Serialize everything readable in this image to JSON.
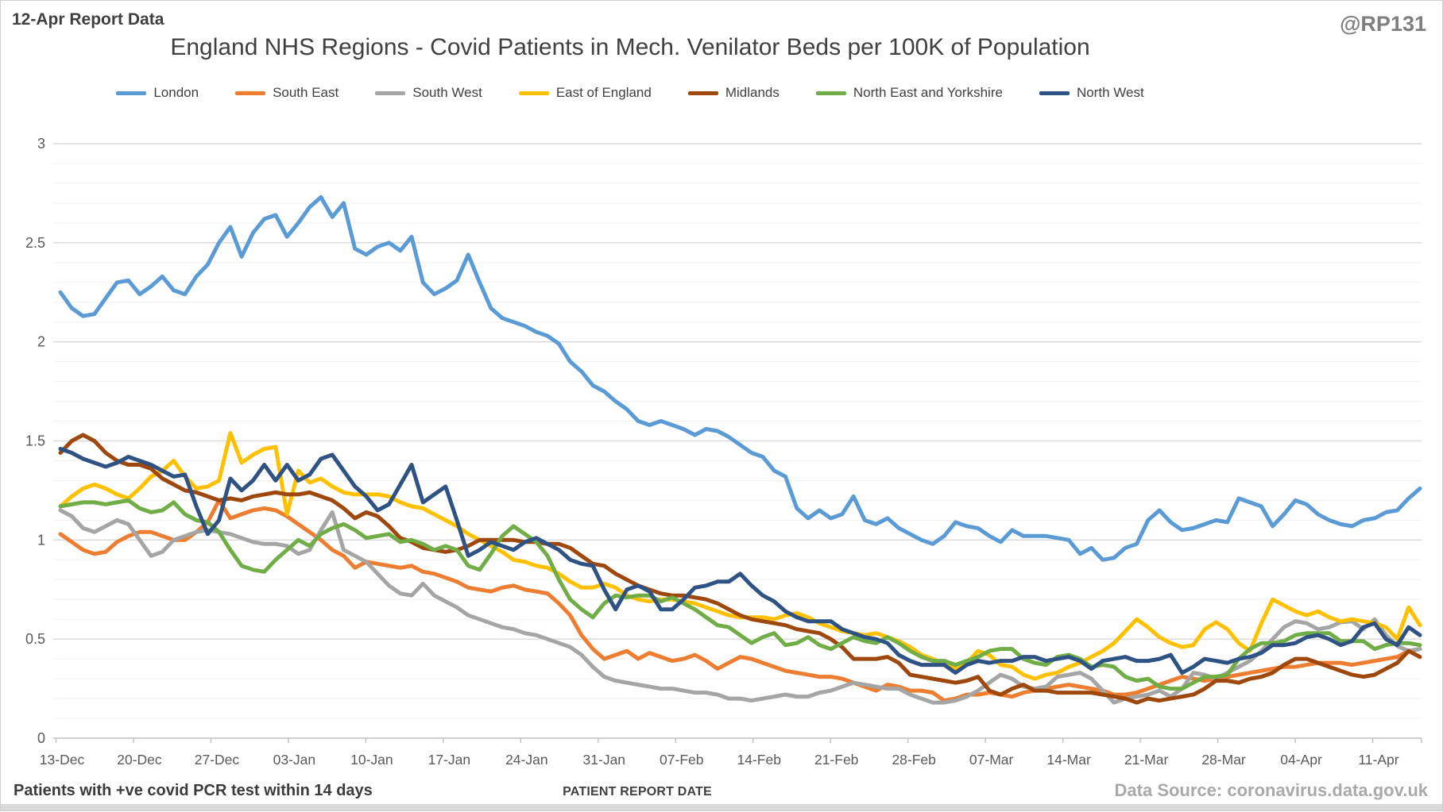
{
  "header": {
    "report_label": "12-Apr Report Data",
    "watermark": "@RP131",
    "title": "England NHS Regions - Covid Patients in Mech. Venilator Beds per 100K of Population"
  },
  "footer": {
    "left_note": "Patients with +ve covid PCR test within 14 days",
    "xlabel": "PATIENT REPORT DATE",
    "source": "Data Source: coronavirus.data.gov.uk"
  },
  "chart_data": {
    "type": "line",
    "title": "England NHS Regions - Covid Patients in Mech. Venilator Beds per 100K of Population",
    "xlabel": "PATIENT REPORT DATE",
    "ylabel": "",
    "ylim": [
      0,
      3
    ],
    "y_ticks": [
      0,
      0.5,
      1,
      1.5,
      2,
      2.5,
      3
    ],
    "y_minor_step": 0.1,
    "grid": "horizontal",
    "legend_position": "top",
    "x_tick_labels": [
      "13-Dec",
      "20-Dec",
      "27-Dec",
      "03-Jan",
      "10-Jan",
      "17-Jan",
      "24-Jan",
      "31-Jan",
      "07-Feb",
      "14-Feb",
      "21-Feb",
      "28-Feb",
      "07-Mar",
      "14-Mar",
      "21-Mar",
      "28-Mar",
      "04-Apr",
      "11-Apr"
    ],
    "x_start": "13-Dec",
    "x_end": "12-Apr",
    "points_per_series": 121,
    "axis_color": "#bfbfbf",
    "major_grid_color": "#d9d9d9",
    "minor_grid_color": "#f0f0f0",
    "series": [
      {
        "name": "London",
        "color": "#5B9BD5",
        "values": [
          2.25,
          2.17,
          2.13,
          2.14,
          2.22,
          2.3,
          2.31,
          2.24,
          2.28,
          2.33,
          2.26,
          2.24,
          2.33,
          2.39,
          2.5,
          2.58,
          2.43,
          2.55,
          2.62,
          2.64,
          2.53,
          2.6,
          2.68,
          2.73,
          2.63,
          2.7,
          2.47,
          2.44,
          2.48,
          2.5,
          2.46,
          2.53,
          2.3,
          2.24,
          2.27,
          2.31,
          2.44,
          2.3,
          2.17,
          2.12,
          2.1,
          2.08,
          2.05,
          2.03,
          1.99,
          1.9,
          1.85,
          1.78,
          1.75,
          1.7,
          1.66,
          1.6,
          1.58,
          1.6,
          1.58,
          1.56,
          1.53,
          1.56,
          1.55,
          1.52,
          1.48,
          1.44,
          1.42,
          1.35,
          1.32,
          1.16,
          1.11,
          1.15,
          1.11,
          1.13,
          1.22,
          1.1,
          1.08,
          1.11,
          1.06,
          1.03,
          1.0,
          0.98,
          1.02,
          1.09,
          1.07,
          1.06,
          1.02,
          0.99,
          1.05,
          1.02,
          1.02,
          1.02,
          1.01,
          1.0,
          0.93,
          0.96,
          0.9,
          0.91,
          0.96,
          0.98,
          1.1,
          1.15,
          1.09,
          1.05,
          1.06,
          1.08,
          1.1,
          1.09,
          1.21,
          1.19,
          1.17,
          1.07,
          1.13,
          1.2,
          1.18,
          1.13,
          1.1,
          1.08,
          1.07,
          1.1,
          1.11,
          1.14,
          1.15,
          1.21,
          1.26
        ]
      },
      {
        "name": "South East",
        "color": "#ED7D31",
        "values": [
          1.03,
          0.99,
          0.95,
          0.93,
          0.94,
          0.99,
          1.02,
          1.04,
          1.04,
          1.02,
          1.0,
          1.0,
          1.04,
          1.09,
          1.2,
          1.11,
          1.13,
          1.15,
          1.16,
          1.15,
          1.12,
          1.08,
          1.04,
          1.0,
          0.95,
          0.92,
          0.86,
          0.89,
          0.88,
          0.87,
          0.86,
          0.87,
          0.84,
          0.83,
          0.81,
          0.79,
          0.76,
          0.75,
          0.74,
          0.76,
          0.77,
          0.75,
          0.74,
          0.73,
          0.68,
          0.62,
          0.52,
          0.45,
          0.4,
          0.42,
          0.44,
          0.4,
          0.43,
          0.41,
          0.39,
          0.4,
          0.42,
          0.39,
          0.35,
          0.38,
          0.41,
          0.4,
          0.38,
          0.36,
          0.34,
          0.33,
          0.32,
          0.31,
          0.31,
          0.3,
          0.28,
          0.26,
          0.24,
          0.27,
          0.26,
          0.24,
          0.24,
          0.23,
          0.19,
          0.2,
          0.22,
          0.22,
          0.23,
          0.22,
          0.21,
          0.23,
          0.24,
          0.25,
          0.26,
          0.27,
          0.26,
          0.25,
          0.24,
          0.22,
          0.22,
          0.23,
          0.25,
          0.27,
          0.29,
          0.31,
          0.3,
          0.29,
          0.3,
          0.31,
          0.32,
          0.33,
          0.34,
          0.35,
          0.36,
          0.36,
          0.37,
          0.38,
          0.38,
          0.38,
          0.37,
          0.38,
          0.39,
          0.4,
          0.41,
          0.44,
          0.45
        ]
      },
      {
        "name": "South West",
        "color": "#A5A5A5",
        "values": [
          1.15,
          1.12,
          1.06,
          1.04,
          1.07,
          1.1,
          1.08,
          1.0,
          0.92,
          0.94,
          1.0,
          1.02,
          1.04,
          1.05,
          1.04,
          1.03,
          1.01,
          0.99,
          0.98,
          0.98,
          0.97,
          0.93,
          0.95,
          1.05,
          1.14,
          0.95,
          0.92,
          0.89,
          0.83,
          0.77,
          0.73,
          0.72,
          0.78,
          0.72,
          0.69,
          0.66,
          0.62,
          0.6,
          0.58,
          0.56,
          0.55,
          0.53,
          0.52,
          0.5,
          0.48,
          0.46,
          0.42,
          0.36,
          0.31,
          0.29,
          0.28,
          0.27,
          0.26,
          0.25,
          0.25,
          0.24,
          0.23,
          0.23,
          0.22,
          0.2,
          0.2,
          0.19,
          0.2,
          0.21,
          0.22,
          0.21,
          0.21,
          0.23,
          0.24,
          0.26,
          0.28,
          0.27,
          0.26,
          0.25,
          0.25,
          0.22,
          0.2,
          0.18,
          0.18,
          0.19,
          0.21,
          0.24,
          0.28,
          0.32,
          0.3,
          0.26,
          0.25,
          0.26,
          0.31,
          0.32,
          0.33,
          0.3,
          0.24,
          0.18,
          0.2,
          0.21,
          0.22,
          0.24,
          0.21,
          0.25,
          0.33,
          0.32,
          0.3,
          0.33,
          0.36,
          0.39,
          0.44,
          0.5,
          0.56,
          0.59,
          0.58,
          0.55,
          0.56,
          0.585,
          0.59,
          0.55,
          0.6,
          0.52,
          0.465,
          0.44,
          0.45
        ]
      },
      {
        "name": "East of England",
        "color": "#FFC000",
        "values": [
          1.17,
          1.22,
          1.26,
          1.28,
          1.26,
          1.23,
          1.21,
          1.26,
          1.32,
          1.35,
          1.4,
          1.32,
          1.26,
          1.27,
          1.3,
          1.54,
          1.39,
          1.43,
          1.46,
          1.47,
          1.13,
          1.35,
          1.29,
          1.31,
          1.27,
          1.24,
          1.23,
          1.23,
          1.23,
          1.22,
          1.19,
          1.17,
          1.16,
          1.13,
          1.1,
          1.07,
          1.03,
          1.0,
          0.97,
          0.94,
          0.9,
          0.89,
          0.87,
          0.86,
          0.83,
          0.79,
          0.76,
          0.76,
          0.78,
          0.76,
          0.72,
          0.7,
          0.69,
          0.7,
          0.7,
          0.69,
          0.68,
          0.66,
          0.64,
          0.62,
          0.61,
          0.61,
          0.61,
          0.6,
          0.62,
          0.63,
          0.61,
          0.58,
          0.56,
          0.54,
          0.53,
          0.52,
          0.53,
          0.51,
          0.49,
          0.46,
          0.42,
          0.4,
          0.37,
          0.35,
          0.38,
          0.44,
          0.42,
          0.37,
          0.36,
          0.32,
          0.3,
          0.32,
          0.33,
          0.36,
          0.38,
          0.41,
          0.44,
          0.48,
          0.54,
          0.6,
          0.56,
          0.51,
          0.48,
          0.46,
          0.47,
          0.55,
          0.585,
          0.55,
          0.48,
          0.44,
          0.58,
          0.7,
          0.67,
          0.64,
          0.62,
          0.64,
          0.61,
          0.59,
          0.6,
          0.59,
          0.58,
          0.56,
          0.5,
          0.66,
          0.57
        ]
      },
      {
        "name": "Midlands",
        "color": "#9E480E",
        "values": [
          1.44,
          1.5,
          1.53,
          1.5,
          1.44,
          1.4,
          1.38,
          1.38,
          1.36,
          1.31,
          1.28,
          1.25,
          1.24,
          1.22,
          1.2,
          1.21,
          1.2,
          1.22,
          1.23,
          1.24,
          1.23,
          1.23,
          1.24,
          1.22,
          1.2,
          1.16,
          1.11,
          1.14,
          1.12,
          1.07,
          1.01,
          0.99,
          0.96,
          0.95,
          0.94,
          0.95,
          0.97,
          1.0,
          1.0,
          1.0,
          1.0,
          0.99,
          0.99,
          0.98,
          0.98,
          0.96,
          0.92,
          0.88,
          0.87,
          0.83,
          0.8,
          0.77,
          0.75,
          0.73,
          0.72,
          0.72,
          0.71,
          0.7,
          0.68,
          0.65,
          0.62,
          0.6,
          0.59,
          0.58,
          0.57,
          0.55,
          0.54,
          0.53,
          0.5,
          0.46,
          0.4,
          0.4,
          0.4,
          0.41,
          0.38,
          0.32,
          0.31,
          0.3,
          0.29,
          0.28,
          0.29,
          0.31,
          0.24,
          0.22,
          0.25,
          0.27,
          0.24,
          0.24,
          0.23,
          0.23,
          0.23,
          0.23,
          0.22,
          0.21,
          0.2,
          0.18,
          0.2,
          0.19,
          0.2,
          0.21,
          0.22,
          0.25,
          0.29,
          0.29,
          0.28,
          0.3,
          0.31,
          0.33,
          0.37,
          0.4,
          0.4,
          0.38,
          0.36,
          0.34,
          0.32,
          0.31,
          0.32,
          0.35,
          0.38,
          0.44,
          0.41
        ]
      },
      {
        "name": "North East and Yorkshire",
        "color": "#70AD47",
        "values": [
          1.17,
          1.18,
          1.19,
          1.19,
          1.18,
          1.19,
          1.2,
          1.16,
          1.14,
          1.15,
          1.19,
          1.13,
          1.1,
          1.09,
          1.04,
          0.95,
          0.87,
          0.85,
          0.84,
          0.9,
          0.95,
          1.0,
          0.97,
          1.03,
          1.06,
          1.08,
          1.05,
          1.01,
          1.02,
          1.03,
          0.99,
          1.0,
          0.98,
          0.95,
          0.97,
          0.95,
          0.87,
          0.85,
          0.93,
          1.02,
          1.07,
          1.03,
          0.99,
          0.92,
          0.8,
          0.7,
          0.65,
          0.61,
          0.68,
          0.72,
          0.71,
          0.72,
          0.72,
          0.69,
          0.71,
          0.68,
          0.65,
          0.61,
          0.57,
          0.56,
          0.52,
          0.48,
          0.51,
          0.53,
          0.47,
          0.48,
          0.51,
          0.47,
          0.45,
          0.48,
          0.51,
          0.49,
          0.48,
          0.51,
          0.48,
          0.44,
          0.41,
          0.39,
          0.39,
          0.37,
          0.39,
          0.41,
          0.44,
          0.45,
          0.45,
          0.4,
          0.38,
          0.37,
          0.41,
          0.42,
          0.4,
          0.36,
          0.37,
          0.36,
          0.31,
          0.29,
          0.3,
          0.26,
          0.25,
          0.25,
          0.28,
          0.31,
          0.31,
          0.32,
          0.4,
          0.45,
          0.48,
          0.48,
          0.49,
          0.52,
          0.53,
          0.53,
          0.53,
          0.49,
          0.49,
          0.49,
          0.45,
          0.47,
          0.48,
          0.48,
          0.47
        ]
      },
      {
        "name": "North West",
        "color": "#2E5283",
        "values": [
          1.46,
          1.44,
          1.41,
          1.39,
          1.37,
          1.39,
          1.42,
          1.4,
          1.38,
          1.35,
          1.32,
          1.33,
          1.17,
          1.03,
          1.1,
          1.31,
          1.25,
          1.3,
          1.38,
          1.3,
          1.38,
          1.3,
          1.33,
          1.41,
          1.43,
          1.35,
          1.27,
          1.22,
          1.15,
          1.18,
          1.28,
          1.38,
          1.19,
          1.23,
          1.27,
          1.1,
          0.92,
          0.95,
          0.99,
          0.97,
          0.95,
          0.99,
          1.01,
          0.98,
          0.95,
          0.9,
          0.88,
          0.87,
          0.75,
          0.65,
          0.75,
          0.77,
          0.74,
          0.65,
          0.65,
          0.7,
          0.76,
          0.77,
          0.79,
          0.79,
          0.83,
          0.77,
          0.72,
          0.69,
          0.64,
          0.61,
          0.59,
          0.59,
          0.59,
          0.55,
          0.53,
          0.51,
          0.5,
          0.48,
          0.42,
          0.39,
          0.37,
          0.37,
          0.37,
          0.33,
          0.37,
          0.39,
          0.38,
          0.39,
          0.39,
          0.41,
          0.41,
          0.39,
          0.4,
          0.41,
          0.39,
          0.35,
          0.39,
          0.4,
          0.41,
          0.39,
          0.39,
          0.4,
          0.42,
          0.33,
          0.36,
          0.4,
          0.39,
          0.38,
          0.4,
          0.41,
          0.43,
          0.47,
          0.47,
          0.48,
          0.51,
          0.52,
          0.5,
          0.47,
          0.49,
          0.56,
          0.58,
          0.5,
          0.47,
          0.56,
          0.52
        ]
      }
    ]
  }
}
